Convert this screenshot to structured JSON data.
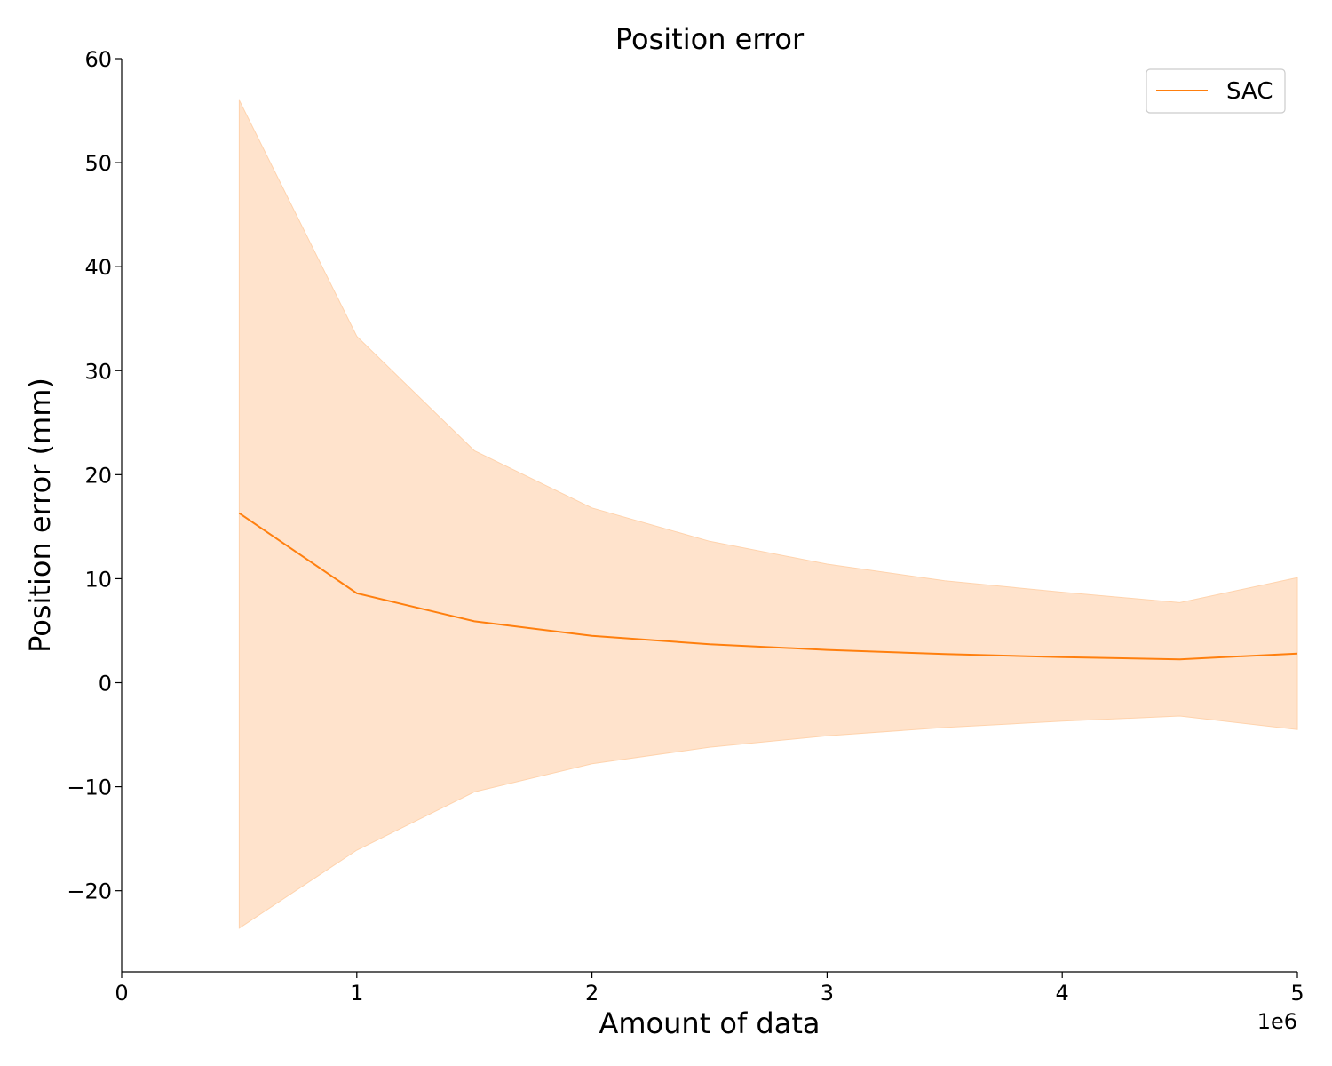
{
  "chart_data": {
    "type": "line",
    "title": "Position error",
    "xlabel": "Amount of data",
    "ylabel": "Position error (mm)",
    "x_offset_label": "1e6",
    "xlim": [
      0,
      5
    ],
    "ylim": [
      -27.8,
      60
    ],
    "x_ticks": [
      0,
      1,
      2,
      3,
      4,
      5
    ],
    "x_tick_labels": [
      "0",
      "1",
      "2",
      "3",
      "4",
      "5"
    ],
    "y_ticks": [
      -20,
      -10,
      0,
      10,
      20,
      30,
      40,
      50,
      60
    ],
    "y_tick_labels": [
      "−20",
      "−10",
      "0",
      "10",
      "20",
      "30",
      "40",
      "50",
      "60"
    ],
    "x": [
      0.5,
      1.0,
      1.5,
      2.0,
      2.5,
      3.0,
      3.5,
      4.0,
      4.5,
      5.0
    ],
    "series": [
      {
        "name": "SAC",
        "color": "#ff7f0e",
        "band_color": "#ffe3cc",
        "values": [
          16.3,
          8.6,
          5.9,
          4.5,
          3.7,
          3.15,
          2.75,
          2.45,
          2.25,
          2.8
        ],
        "upper": [
          56.0,
          33.3,
          22.3,
          16.8,
          13.6,
          11.4,
          9.8,
          8.7,
          7.7,
          10.1
        ],
        "lower": [
          -23.6,
          -16.1,
          -10.5,
          -7.8,
          -6.2,
          -5.1,
          -4.3,
          -3.7,
          -3.2,
          -4.5
        ]
      }
    ],
    "grid": false,
    "legend_position": "top-right"
  }
}
